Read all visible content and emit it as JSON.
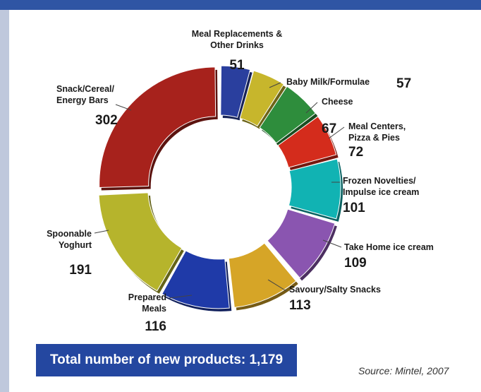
{
  "chart_data": {
    "type": "pie",
    "variant": "donut",
    "slices": [
      {
        "label": [
          "Meal Replacements &",
          "Other Drinks"
        ],
        "value": 51,
        "color": "#2a3f9e"
      },
      {
        "label": [
          "Baby Milk/Formulae"
        ],
        "value": 57,
        "color": "#c7b62c"
      },
      {
        "label": [
          "Cheese"
        ],
        "value": 67,
        "color": "#2e8d3c"
      },
      {
        "label": [
          "Meal Centers,",
          "Pizza & Pies"
        ],
        "value": 72,
        "color": "#d42c1c"
      },
      {
        "label": [
          "Frozen Novelties/",
          "Impulse ice cream"
        ],
        "value": 101,
        "color": "#11b3b3"
      },
      {
        "label": [
          "Take Home ice cream"
        ],
        "value": 109,
        "color": "#8a55b0"
      },
      {
        "label": [
          "Savoury/Salty Snacks"
        ],
        "value": 113,
        "color": "#d6a527"
      },
      {
        "label": [
          "Prepared",
          "Meals"
        ],
        "value": 116,
        "color": "#1f3aa8"
      },
      {
        "label": [
          "Spoonable",
          "Yoghurt"
        ],
        "value": 191,
        "color": "#b6b42c"
      },
      {
        "label": [
          "Snack/Cereal/",
          "Energy  Bars"
        ],
        "value": 302,
        "color": "#a7221c"
      }
    ],
    "total_label": "Total number of new products:  1,179",
    "source": "Source: Mintel, 2007"
  }
}
